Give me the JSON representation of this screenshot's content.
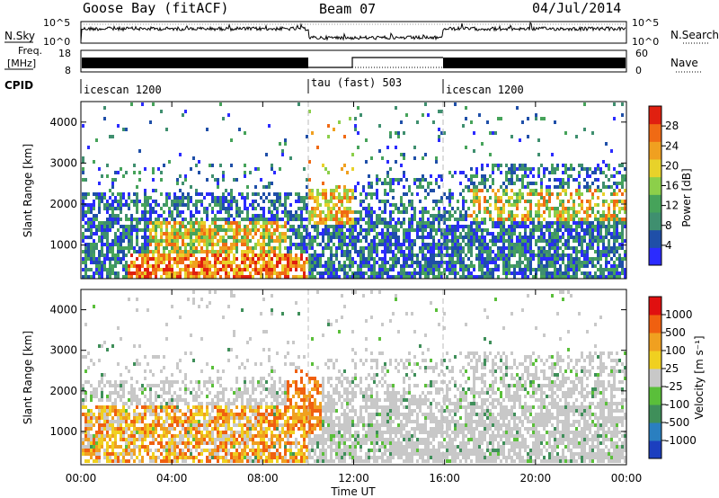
{
  "header": {
    "station": "Goose Bay (fitACF)",
    "beam": "Beam 07",
    "date": "04/Jul/2014"
  },
  "panels": {
    "nsky_label": "N.Sky",
    "nsearch_label": "N.Search",
    "freq_label_top": "Freq.",
    "freq_label_units": "[MHz]",
    "nave_label": "Nave",
    "cpid_label": "CPID",
    "log_ticks_top": "10^5",
    "log_ticks_bottom": "10^0",
    "freq_ticks": [
      "18",
      "8"
    ],
    "nave_ticks": [
      "60",
      "0"
    ]
  },
  "cpid_segments": [
    {
      "start": 0,
      "end": 10,
      "label": "icescan 1200"
    },
    {
      "start": 10,
      "end": 16,
      "label": "tau (fast) 503"
    },
    {
      "start": 16,
      "end": 24,
      "label": "icescan 1200"
    }
  ],
  "chart_data": [
    {
      "type": "heatmap",
      "title": "Power",
      "xlabel": "Time UT",
      "ylabel": "Slant Range [km]",
      "xlim": [
        0,
        24
      ],
      "ylim": [
        180,
        4500
      ],
      "yticks": [
        "1000",
        "2000",
        "3000",
        "4000"
      ],
      "colorbar_label": "Power [dB]",
      "colorbar_ticks": [
        "4",
        "8",
        "12",
        "16",
        "20",
        "24",
        "28"
      ],
      "colorbar_colors": [
        "#2b2bff",
        "#1f4fa8",
        "#3f8f6f",
        "#46a35a",
        "#8ccf4a",
        "#e8d22a",
        "#f0a020",
        "#f06a14",
        "#e02010"
      ]
    },
    {
      "type": "heatmap",
      "title": "Velocity",
      "xlabel": "Time UT",
      "ylabel": "Slant Range [km]",
      "xlim": [
        0,
        24
      ],
      "ylim": [
        180,
        4500
      ],
      "yticks": [
        "1000",
        "2000",
        "3000",
        "4000"
      ],
      "colorbar_label": "Velocity [m s⁻¹]",
      "colorbar_ticks": [
        "1000",
        "500",
        "100",
        "25",
        "-25",
        "-100",
        "-500",
        "-1000"
      ],
      "colorbar_colors": [
        "#1c3fbf",
        "#2a7fc0",
        "#3f8f5a",
        "#5abf3a",
        "#c8c8c8",
        "#f0d020",
        "#f0a020",
        "#f06010",
        "#e01010"
      ]
    }
  ],
  "xaxis": {
    "ticks": [
      "00:00",
      "04:00",
      "08:00",
      "12:00",
      "16:00",
      "20:00",
      "00:00"
    ],
    "label": "Time UT"
  }
}
